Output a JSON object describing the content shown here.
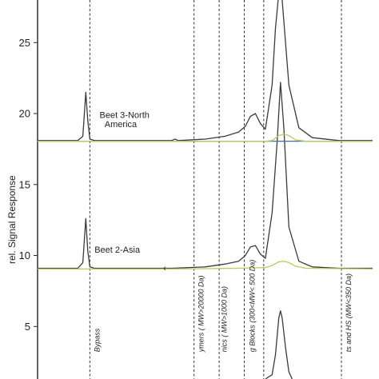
{
  "chart_data": {
    "type": "line",
    "title": "",
    "xlabel": "",
    "ylabel": "rel. Signal Response",
    "ylim": [
      1.3,
      28
    ],
    "yticks": [
      5,
      10,
      15,
      20,
      25
    ],
    "xlim": [
      0,
      100
    ],
    "grid": false,
    "series_labels": [
      {
        "text": "Beet 3-North",
        "x": 18.5,
        "y": 19.7
      },
      {
        "text": "America",
        "x": 20,
        "y": 19.05
      },
      {
        "text": "Beet 2-Asia",
        "x": 17,
        "y": 10.2
      }
    ],
    "band_boundaries_x": [
      15.6,
      46.7,
      54.2,
      61.7,
      67.5,
      90.7
    ],
    "band_labels": [
      {
        "text": "Bypass",
        "x": 18.5,
        "y": 3.2
      },
      {
        "text": "ymers ( MW>20000 Da)",
        "x": 49.5,
        "y": 3.2
      },
      {
        "text": "nics ( MW>1000 Da)",
        "x": 56.5,
        "y": 3.2
      },
      {
        "text": "g Blocks (300<MW< 500 Da)",
        "x": 64.8,
        "y": 3.2
      },
      {
        "text": "ts and HS (MW<350 Da)",
        "x": 93.5,
        "y": 3.2
      }
    ],
    "series": [
      {
        "color": "#3a3a3a",
        "x": [
          0,
          12,
          13.5,
          14.4,
          15.0,
          15.6,
          17,
          20,
          30,
          40,
          41,
          42,
          50,
          56,
          60,
          62,
          63.5,
          65,
          66.5,
          68,
          70,
          71,
          72,
          73,
          75,
          78,
          82,
          90,
          100
        ],
        "y": [
          18.1,
          18.1,
          18.4,
          21.5,
          19.5,
          18.2,
          18.1,
          18.1,
          18.1,
          18.1,
          18.2,
          18.1,
          18.2,
          18.4,
          18.7,
          19.1,
          19.8,
          20.0,
          19.3,
          18.9,
          22.0,
          26.0,
          28.5,
          28.0,
          22.0,
          19.0,
          18.3,
          18.1,
          18.1
        ]
      },
      {
        "color": "#3a3a3a",
        "x": [
          0,
          12,
          13.5,
          14.4,
          15.0,
          15.6,
          17,
          20,
          40,
          50,
          56,
          60,
          62,
          63.5,
          65,
          66.5,
          68,
          70,
          71.5,
          72.5,
          73.5,
          75,
          78,
          82,
          90,
          100
        ],
        "y": [
          9.1,
          9.1,
          9.5,
          12.6,
          10.3,
          9.2,
          9.1,
          9.1,
          9.1,
          9.2,
          9.4,
          9.6,
          10.0,
          10.6,
          10.7,
          10.1,
          9.8,
          13.0,
          18.0,
          22.2,
          19.0,
          12.0,
          9.6,
          9.2,
          9.1,
          9.1
        ]
      },
      {
        "color": "#3a3a3a",
        "x": [
          68,
          70,
          71,
          72.0,
          72.5,
          73,
          74,
          75,
          76
        ],
        "y": [
          1.3,
          1.6,
          3.0,
          5.6,
          6.1,
          5.6,
          3.5,
          1.8,
          1.3
        ]
      },
      {
        "color": "#4b6b9a",
        "x": [
          0,
          100
        ],
        "y": [
          18.05,
          18.05
        ]
      },
      {
        "color": "#b7cc5a",
        "x": [
          0,
          68,
          70,
          72,
          73.5,
          75,
          77,
          80,
          100
        ],
        "y": [
          18.05,
          18.05,
          18.1,
          18.45,
          18.55,
          18.45,
          18.15,
          18.05,
          18.05
        ]
      },
      {
        "color": "#b7cc5a",
        "x": [
          0,
          40,
          60,
          68,
          70,
          72,
          73.5,
          75,
          77,
          80,
          100
        ],
        "y": [
          9.05,
          9.05,
          9.1,
          9.15,
          9.3,
          9.55,
          9.6,
          9.5,
          9.25,
          9.1,
          9.05
        ]
      }
    ],
    "annotations": [
      {
        "text": "‹",
        "x": 37.5,
        "y": 8.9
      }
    ]
  }
}
